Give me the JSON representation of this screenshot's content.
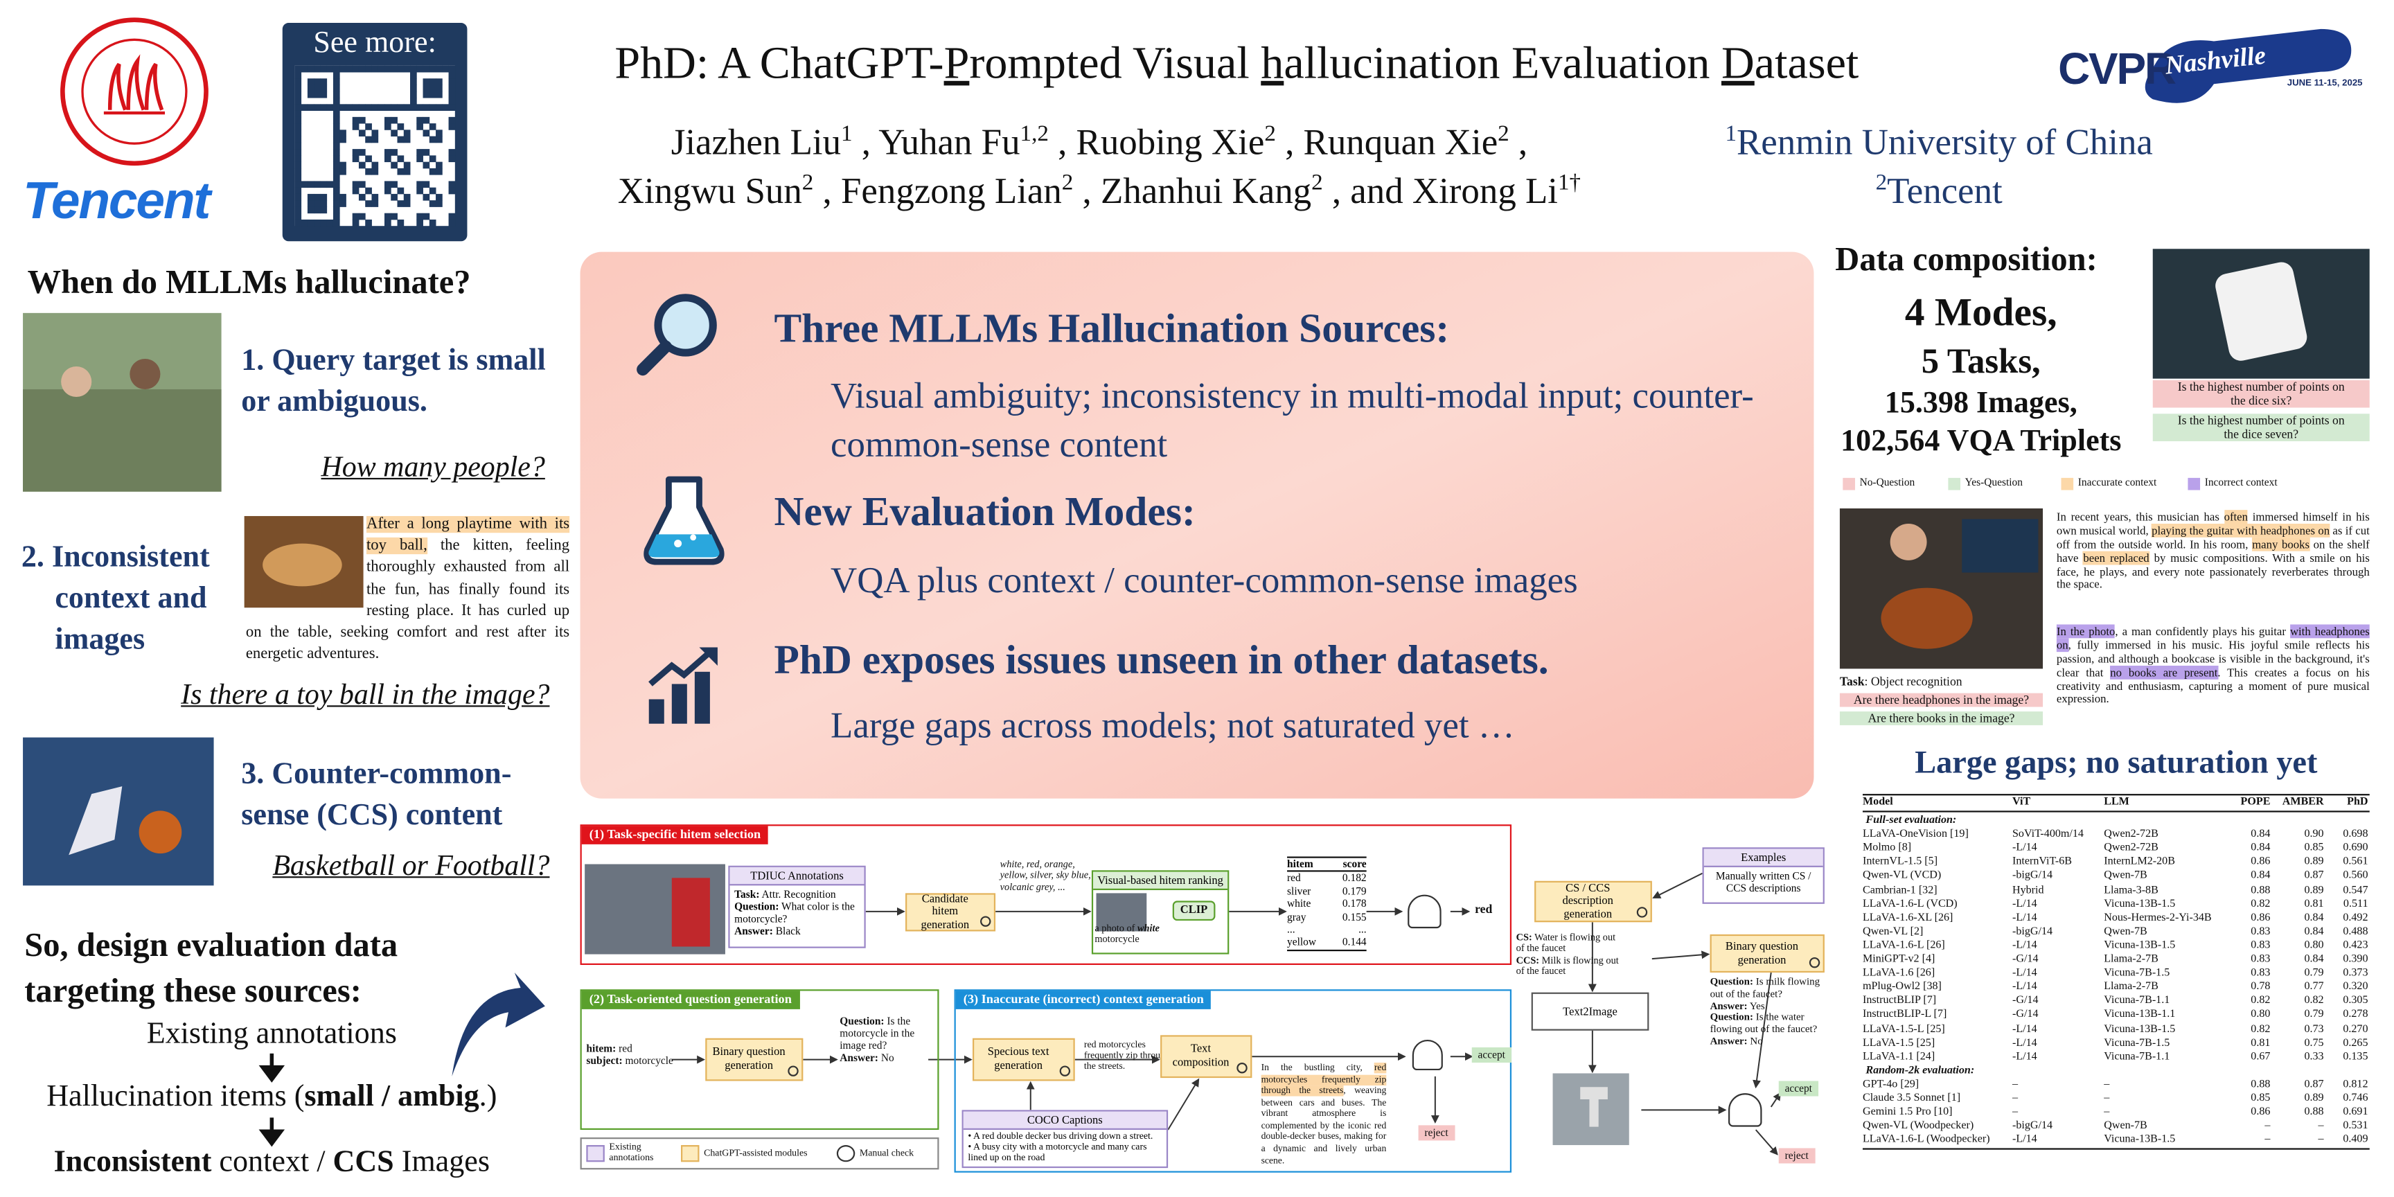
{
  "logos": {
    "tencent": "Tencent",
    "qr_caption": "See more:",
    "cvpr": "CVPR",
    "cvpr_city": "Nashville",
    "cvpr_dates": "JUNE 11-15, 2025"
  },
  "header": {
    "title_parts": [
      "PhD: A ChatGPT-",
      "P",
      "rompted Visual ",
      "h",
      "allucination Evaluation ",
      "D",
      "ataset"
    ],
    "authors": [
      {
        "name": "Jiazhen Liu",
        "aff": "1"
      },
      {
        "name": "Yuhan Fu",
        "aff": "1,2"
      },
      {
        "name": "Ruobing Xie",
        "aff": "2"
      },
      {
        "name": "Runquan Xie",
        "aff": "2"
      },
      {
        "name": "Xingwu Sun",
        "aff": "2"
      },
      {
        "name": "Fengzong Lian",
        "aff": "2"
      },
      {
        "name": "Zhanhui Kang",
        "aff": "2"
      },
      {
        "name": "Xirong Li",
        "aff": "1†"
      }
    ],
    "author_separator": ",",
    "author_conjunction": "and",
    "affiliations": [
      {
        "aff": "1",
        "name": "Renmin University of China"
      },
      {
        "aff": "2",
        "name": "Tencent"
      }
    ]
  },
  "left": {
    "heading": "When do MLLMs hallucinate?",
    "items": [
      {
        "title": "1. Query target is small or ambiguous.",
        "question": "How many people?"
      },
      {
        "title": "2. Inconsistent context and images",
        "question": "Is there a toy ball in the image?",
        "context": [
          {
            "text": "After a long playtime with its toy ball,",
            "highlight": "#fcd8a8"
          },
          " the kitten, feeling thoroughly exhausted from all the fun, has finally found its resting place. It has curled up on the table, seeking comfort and rest after its energetic adventures."
        ]
      },
      {
        "title": "3. Counter-common-sense (CCS) content",
        "question": "Basketball or Football?"
      }
    ],
    "design": "So, design evaluation data targeting these sources:",
    "flow": [
      "Existing annotations",
      [
        "Hallucination items (",
        {
          "text": "small / ambig",
          "bold": true
        },
        ".)"
      ],
      [
        {
          "text": "Inconsistent",
          "bold": true
        },
        " context / ",
        {
          "text": "CCS",
          "bold": true
        },
        " Images"
      ]
    ]
  },
  "center": {
    "sources": [
      {
        "heading": "Three MLLMs Hallucination Sources:",
        "text": "Visual ambiguity; inconsistency in multi-modal input; counter-common-sense content"
      },
      {
        "heading": "New Evaluation Modes:",
        "text": "VQA plus context / counter-common-sense images"
      },
      {
        "heading": "PhD exposes issues unseen in other datasets.",
        "text": "Large gaps across models; not saturated yet …"
      }
    ]
  },
  "pipeline": {
    "panels": [
      {
        "label": "(1) Task-specific hitem selection",
        "color": "#e0141b"
      },
      {
        "label": "(2) Task-oriented question generation",
        "color": "#5aa02c"
      },
      {
        "label": "(3) Inaccurate (incorrect) context generation",
        "color": "#1a8fd9"
      }
    ],
    "tdiuc": {
      "title": "TDIUC Annotations",
      "lines": [
        [
          {
            "text": "Task:",
            "bold": true
          },
          " Attr. Recognition"
        ],
        [
          {
            "text": "Question:",
            "bold": true
          },
          " What color is the motorcycle?"
        ],
        [
          {
            "text": "Answer:",
            "bold": true
          },
          " Black"
        ]
      ]
    },
    "candidate": "Candidate hitem generation",
    "candidates": "white, red, orange, yellow, silver, sky blue, volcanic grey, ...",
    "ranking": {
      "title": "Visual-based hitem ranking",
      "prompt": [
        "a photo of ",
        {
          "text": "white",
          "bold": true,
          "italic": true
        },
        " motorcycle"
      ],
      "model": "CLIP"
    },
    "scores": {
      "header": [
        "hitem",
        "score"
      ],
      "rows": [
        [
          "red",
          "0.182"
        ],
        [
          "sliver",
          "0.179"
        ],
        [
          "white",
          "0.178"
        ],
        [
          "gray",
          "0.155"
        ],
        [
          "...",
          "..."
        ],
        [
          "yellow",
          "0.144"
        ]
      ]
    },
    "selected": "red",
    "hitem": [
      [
        {
          "text": "hitem:",
          "bold": true
        },
        " red"
      ],
      [
        {
          "text": "subject:",
          "bold": true
        },
        " motorcycle"
      ]
    ],
    "binary": "Binary question generation",
    "qa": [
      [
        {
          "text": "Question:",
          "bold": true
        },
        " Is the motorcycle in the image red?"
      ],
      [
        {
          "text": "Answer:",
          "bold": true
        },
        " No"
      ]
    ],
    "specious": "Specious text generation",
    "specious_text": "red motorcycles frequently zip through the streets.",
    "composition": "Text composition",
    "composed": [
      "In the bustling city, ",
      {
        "text": "red motorcycles frequently zip through the streets",
        "highlight": "#fcd8a8"
      },
      ", weaving between cars and buses. The vibrant atmosphere is complemented by the iconic red double-decker buses, making for a dynamic and lively urban scene."
    ],
    "coco": {
      "title": "COCO Captions",
      "lines": [
        "• A red double decker bus driving down a street.",
        "• A busy city with a motorcycle and many cars lined up on the road"
      ]
    },
    "accept": "accept",
    "reject": "reject",
    "legend": [
      "Existing annotations",
      "ChatGPT-assisted modules",
      "Manual check"
    ],
    "examples": {
      "title": "Examples",
      "text": "Manually written CS / CCS descriptions"
    },
    "ccs_generation": "CS / CCS description generation",
    "ccs_text": [
      [
        {
          "text": "CS:",
          "bold": true
        },
        " Water is flowing out of the faucet"
      ],
      [
        {
          "text": "CCS:",
          "bold": true
        },
        " Milk is flowing out of the faucet"
      ]
    ],
    "ccs_binary": "Binary question generation",
    "ccs_qa": [
      [
        {
          "text": "Question:",
          "bold": true
        },
        " Is milk flowing out of the faucet?"
      ],
      [
        {
          "text": "Answer:",
          "bold": true
        },
        " Yes"
      ],
      [
        {
          "text": "Question:",
          "bold": true
        },
        " Is the water flowing out of the faucet?"
      ],
      [
        {
          "text": "Answer:",
          "bold": true
        },
        " No"
      ]
    ],
    "text2image": "Text2Image"
  },
  "composition": {
    "heading": "Data composition:",
    "stats": [
      "4 Modes,",
      "5 Tasks,",
      "15.398 Images,",
      "102,564 VQA Triplets"
    ],
    "dice_questions": [
      {
        "text": "Is the highest number of points on the dice six?",
        "color": "#f6c9c9"
      },
      {
        "text": "Is the highest number of points on the dice seven?",
        "color": "#d3ead2"
      }
    ],
    "legend": [
      {
        "label": "No-Question",
        "color": "#f6c9c9"
      },
      {
        "label": "Yes-Question",
        "color": "#d3ead2"
      },
      {
        "label": "Inaccurate context",
        "color": "#fcd8a8"
      },
      {
        "label": "Incorrect context",
        "color": "#b9a1ea"
      }
    ],
    "task_label": "Task",
    "task": ": Object recognition",
    "questions": [
      {
        "text": "Are there headphones in the image?",
        "color": "#f6c9c9"
      },
      {
        "text": "Are there books in the image?",
        "color": "#d3ead2"
      }
    ],
    "contexts": [
      [
        "In recent years, this musician has ",
        {
          "text": "often",
          "highlight": "#fcd8a8"
        },
        " immersed himself in his own musical world, ",
        {
          "text": "playing the guitar with headphones on",
          "highlight": "#fcd8a8"
        },
        " as if cut off from the outside world. In his room, ",
        {
          "text": "many books",
          "highlight": "#fcd8a8"
        },
        " on the shelf have ",
        {
          "text": "been replaced",
          "highlight": "#fcd8a8"
        },
        " by music compositions. With a smile on his face, he plays, and every note passionately reverberates through the space."
      ],
      [
        {
          "text": "In the photo",
          "highlight": "#b9a1ea"
        },
        ", a man confidently plays his guitar ",
        {
          "text": "with headphones on",
          "highlight": "#b9a1ea"
        },
        ", fully immersed in his music. His joyful smile reflects his passion, and although a bookcase is visible in the background, it's clear that ",
        {
          "text": "no books are present",
          "highlight": "#b9a1ea"
        },
        ". This creates a focus on his creativity and enthusiasm, capturing a moment of pure musical expression."
      ]
    ]
  },
  "results": {
    "heading": "Large gaps; no saturation yet",
    "columns": [
      "Model",
      "ViT",
      "LLM",
      "POPE",
      "AMBER",
      "PhD"
    ],
    "sections": [
      {
        "title": "Full-set evaluation:",
        "rows": [
          [
            "LLaVA-OneVision [19]",
            "SoViT-400m/14",
            "Qwen2-72B",
            "0.84",
            "0.90",
            "0.698"
          ],
          [
            "Molmo [8]",
            "-L/14",
            "Qwen2-72B",
            "0.84",
            "0.85",
            "0.690"
          ],
          [
            "InternVL-1.5 [5]",
            "InternViT-6B",
            "InternLM2-20B",
            "0.86",
            "0.89",
            "0.561"
          ],
          [
            "Qwen-VL (VCD)",
            "-bigG/14",
            "Qwen-7B",
            "0.84",
            "0.87",
            "0.560"
          ],
          [
            "Cambrian-1 [32]",
            "Hybrid",
            "Llama-3-8B",
            "0.88",
            "0.89",
            "0.547"
          ],
          [
            "LLaVA-1.6-L (VCD)",
            "-L/14",
            "Vicuna-13B-1.5",
            "0.82",
            "0.81",
            "0.511"
          ],
          [
            "LLaVA-1.6-XL [26]",
            "-L/14",
            "Nous-Hermes-2-Yi-34B",
            "0.86",
            "0.84",
            "0.492"
          ],
          [
            "Qwen-VL [2]",
            "-bigG/14",
            "Qwen-7B",
            "0.83",
            "0.84",
            "0.488"
          ],
          [
            "LLaVA-1.6-L [26]",
            "-L/14",
            "Vicuna-13B-1.5",
            "0.83",
            "0.80",
            "0.423"
          ],
          [
            "MiniGPT-v2 [4]",
            "-G/14",
            "Llama-2-7B",
            "0.83",
            "0.84",
            "0.390"
          ],
          [
            "LLaVA-1.6 [26]",
            "-L/14",
            "Vicuna-7B-1.5",
            "0.83",
            "0.79",
            "0.373"
          ],
          [
            "mPlug-Owl2 [38]",
            "-L/14",
            "Llama-2-7B",
            "0.78",
            "0.77",
            "0.320"
          ],
          [
            "InstructBLIP [7]",
            "-G/14",
            "Vicuna-7B-1.1",
            "0.82",
            "0.82",
            "0.305"
          ],
          [
            "InstructBLIP-L [7]",
            "-G/14",
            "Vicuna-13B-1.1",
            "0.80",
            "0.79",
            "0.278"
          ],
          [
            "LLaVA-1.5-L [25]",
            "-L/14",
            "Vicuna-13B-1.5",
            "0.82",
            "0.73",
            "0.270"
          ],
          [
            "LLaVA-1.5 [25]",
            "-L/14",
            "Vicuna-7B-1.5",
            "0.81",
            "0.75",
            "0.265"
          ],
          [
            "LLaVA-1.1 [24]",
            "-L/14",
            "Vicuna-7B-1.1",
            "0.67",
            "0.33",
            "0.135"
          ]
        ]
      },
      {
        "title": "Random-2k evaluation:",
        "rows": [
          [
            "GPT-4o [29]",
            "–",
            "–",
            "0.88",
            "0.87",
            "0.812"
          ],
          [
            "Claude 3.5 Sonnet [1]",
            "–",
            "–",
            "0.85",
            "0.89",
            "0.746"
          ],
          [
            "Gemini 1.5 Pro [10]",
            "–",
            "–",
            "0.86",
            "0.88",
            "0.691"
          ],
          [
            "Qwen-VL (Woodpecker)",
            "-bigG/14",
            "Qwen-7B",
            "–",
            "–",
            "0.531"
          ],
          [
            "LLaVA-1.6-L (Woodpecker)",
            "-L/14",
            "Vicuna-13B-1.5",
            "–",
            "–",
            "0.409"
          ]
        ]
      }
    ]
  }
}
